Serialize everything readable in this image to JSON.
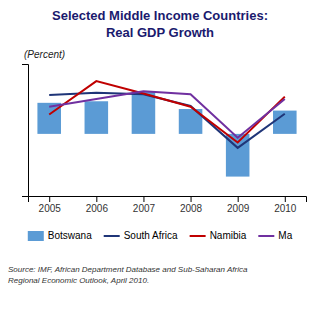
{
  "chart_data": {
    "type": "bar",
    "title": "Selected Middle Income Countries:",
    "subtitle": "Real GDP Growth",
    "ylabel": "(Percent)",
    "source": "Source: IMF, African Department Database and Sub-Saharan Africa\nRegional Economic Outlook, April 2010.",
    "x": [
      2005,
      2006,
      2007,
      2008,
      2009,
      2010
    ],
    "xlim": [
      2004.55,
      2010.45
    ],
    "xticks": [
      2005,
      2006,
      2007,
      2008,
      2009,
      2010
    ],
    "ylim": [
      -8,
      9
    ],
    "tick_labels": "x",
    "grid": false,
    "legend": "bottom",
    "series": [
      {
        "name": "Botswana",
        "type": "bar",
        "color": "#5b9bd5",
        "values": [
          4.0,
          4.2,
          5.5,
          3.2,
          -5.5,
          3.0
        ]
      },
      {
        "name": "South Africa",
        "type": "line",
        "color": "#1f3578",
        "values": [
          5.0,
          5.3,
          5.1,
          3.6,
          -1.8,
          2.6
        ]
      },
      {
        "name": "Namibia",
        "type": "line",
        "color": "#c00000",
        "values": [
          2.5,
          6.8,
          5.2,
          3.5,
          -1.1,
          4.8
        ]
      },
      {
        "name": "Ma",
        "type": "line",
        "color": "#7030a0",
        "values": [
          3.5,
          4.5,
          5.5,
          5.1,
          -0.5,
          4.5
        ]
      }
    ]
  }
}
